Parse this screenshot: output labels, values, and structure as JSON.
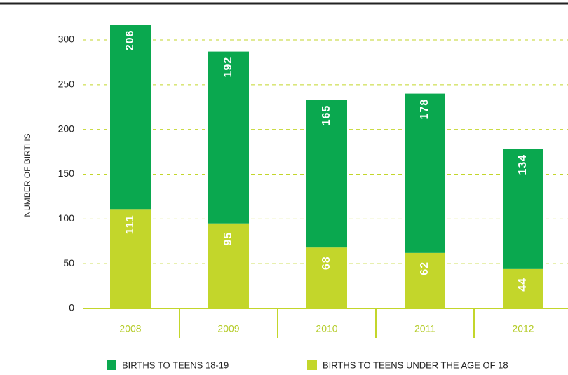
{
  "chart_data": {
    "type": "stacked_bar",
    "y_label": "NUMBER OF BIRTHS",
    "categories": [
      "2008",
      "2009",
      "2010",
      "2011",
      "2012"
    ],
    "series": [
      {
        "name": "BIRTHS TO TEENS 18-19",
        "color": "#0aa84f",
        "values": [
          206,
          192,
          165,
          178,
          134
        ]
      },
      {
        "name": "BIRTHS TO TEENS UNDER THE AGE OF 18",
        "color": "#c3d62b",
        "values": [
          111,
          95,
          68,
          62,
          44
        ]
      }
    ],
    "ylim": [
      0,
      300
    ],
    "yticks": [
      0,
      50,
      100,
      150,
      200,
      250,
      300
    ],
    "grid": true,
    "legend": "bottom"
  }
}
